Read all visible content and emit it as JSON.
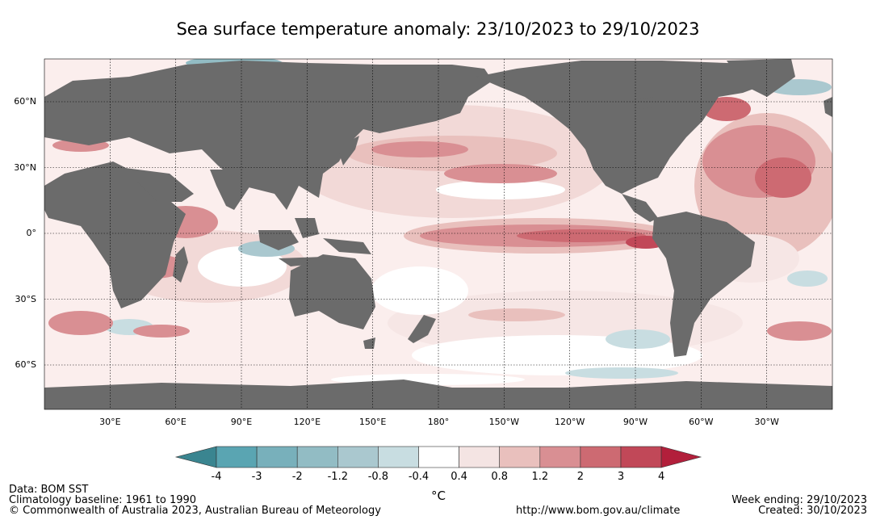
{
  "title": "Sea surface temperature anomaly: 23/10/2023 to 29/10/2023",
  "lat_labels": [
    {
      "text": "60°N",
      "lat": 60
    },
    {
      "text": "30°N",
      "lat": 30
    },
    {
      "text": "0°",
      "lat": 0
    },
    {
      "text": "30°S",
      "lat": -30
    },
    {
      "text": "60°S",
      "lat": -60
    }
  ],
  "lon_labels": [
    {
      "text": "30°E",
      "lon": 30
    },
    {
      "text": "60°E",
      "lon": 60
    },
    {
      "text": "90°E",
      "lon": 90
    },
    {
      "text": "120°E",
      "lon": 120
    },
    {
      "text": "150°E",
      "lon": 150
    },
    {
      "text": "180°",
      "lon": 180
    },
    {
      "text": "150°W",
      "lon": 210
    },
    {
      "text": "120°W",
      "lon": 240
    },
    {
      "text": "90°W",
      "lon": 270
    },
    {
      "text": "60°W",
      "lon": 300
    },
    {
      "text": "30°W",
      "lon": 330
    }
  ],
  "colorbar": {
    "unit": "°C",
    "ticks": [
      "-4",
      "-3",
      "-2",
      "-1.2",
      "-0.8",
      "-0.4",
      "0.4",
      "0.8",
      "1.2",
      "2",
      "3",
      "4"
    ],
    "colors": [
      "#3a8590",
      "#5aa5b2",
      "#78b0bb",
      "#92bcc4",
      "#aac8cf",
      "#c8dde1",
      "#ffffff",
      "#f4e4e3",
      "#e9c0bd",
      "#d98f93",
      "#cd6a72",
      "#c14858",
      "#b21f3b"
    ]
  },
  "land_color": "#6b6b6b",
  "footer": {
    "data_source": "Data: BOM SST",
    "baseline": "Climatology baseline: 1961 to 1990",
    "copyright": "© Commonwealth of Australia 2023, Australian Bureau of Meteorology",
    "url": "http://www.bom.gov.au/climate",
    "week_ending": "Week ending: 29/10/2023",
    "created": "Created: 30/10/2023"
  }
}
